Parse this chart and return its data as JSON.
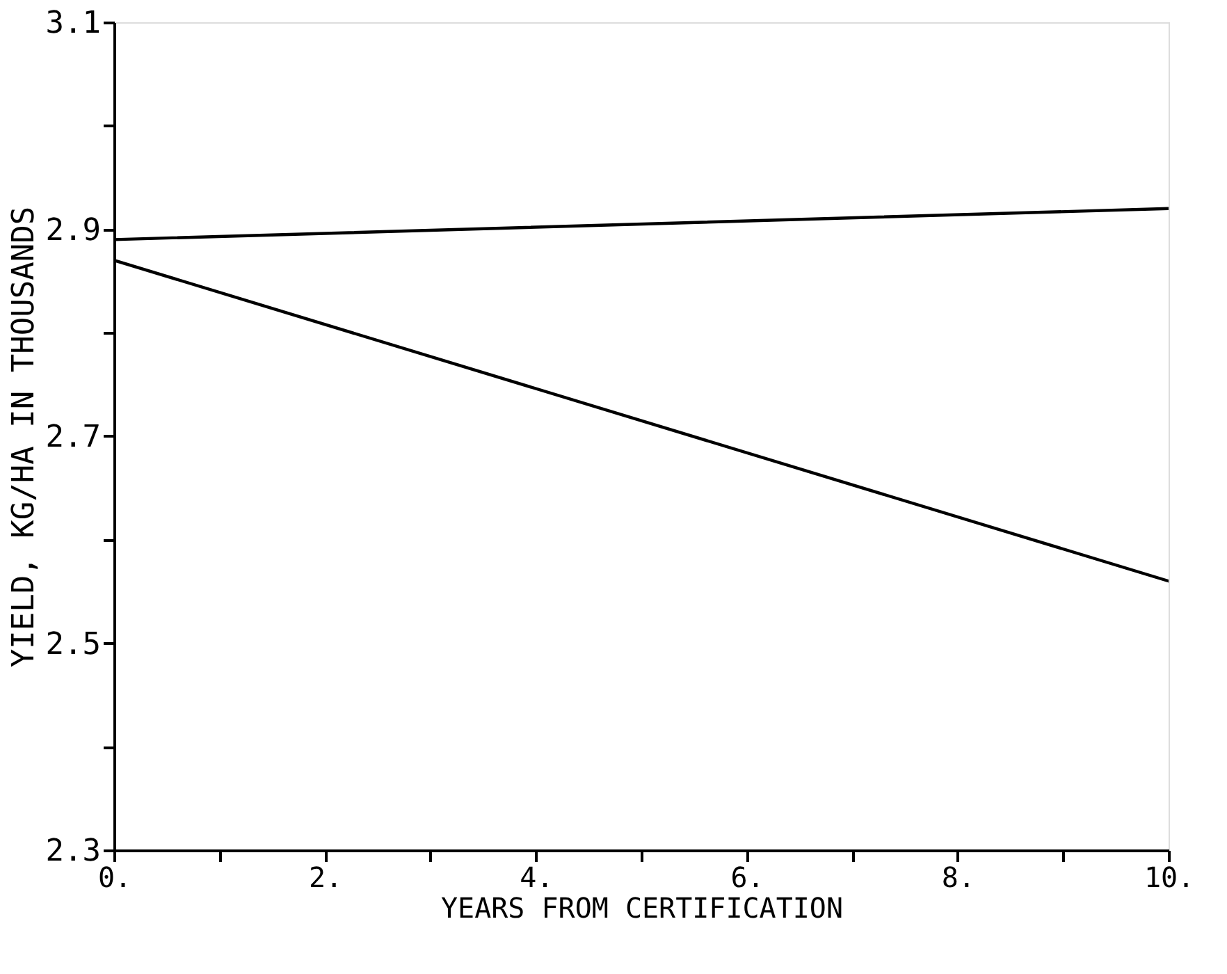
{
  "chart_data": {
    "type": "line",
    "xlabel": "YEARS FROM CERTIFICATION",
    "ylabel": "YIELD, KG/HA IN THOUSANDS",
    "x": [
      0,
      10
    ],
    "series": [
      {
        "color": "#000000",
        "values": [
          2.89,
          2.92
        ]
      },
      {
        "color": "#000000",
        "values": [
          2.87,
          2.56
        ]
      }
    ],
    "xlim": [
      0,
      10
    ],
    "xticks": [
      {
        "value": 0,
        "label": "0."
      },
      {
        "value": 1,
        "label": null
      },
      {
        "value": 2,
        "label": "2."
      },
      {
        "value": 3,
        "label": null
      },
      {
        "value": 4,
        "label": "4."
      },
      {
        "value": 5,
        "label": null
      },
      {
        "value": 6,
        "label": "6."
      },
      {
        "value": 7,
        "label": null
      },
      {
        "value": 8,
        "label": "8."
      },
      {
        "value": 9,
        "label": null
      },
      {
        "value": 10,
        "label": "10."
      }
    ],
    "ylim": [
      2.3,
      3.1
    ],
    "yticks": [
      2.3,
      {
        "value": 2.4,
        "label": null
      },
      2.5,
      {
        "value": 2.6,
        "label": null
      },
      2.7,
      {
        "value": 2.8,
        "label": null
      },
      2.9,
      {
        "value": 3.0,
        "label": null
      },
      3.1
    ],
    "grid": false,
    "legend": false,
    "line_style": "solid",
    "marker": "none"
  }
}
